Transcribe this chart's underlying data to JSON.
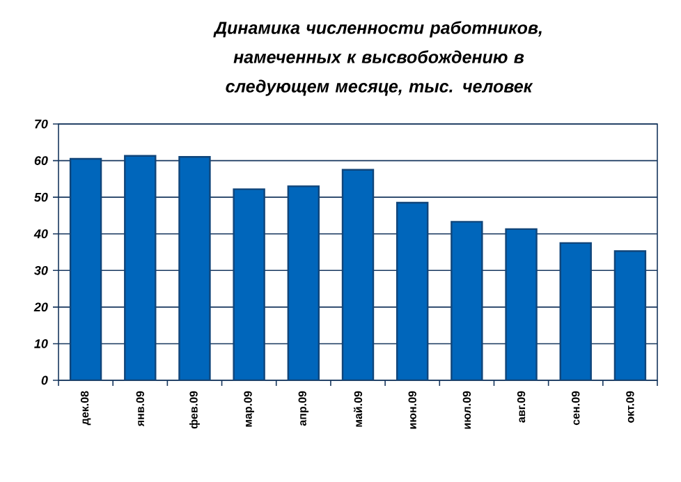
{
  "chart_data": {
    "type": "bar",
    "title": "Динамика численности работников, намеченных к высвобождению в следующем месяце, тыс. человек",
    "categories": [
      "дек.08",
      "янв.09",
      "фев.09",
      "мар.09",
      "апр.09",
      "май.09",
      "июн.09",
      "июл.09",
      "авг.09",
      "сен.09",
      "окт.09"
    ],
    "values": [
      60.5,
      61.3,
      61,
      52.2,
      53,
      57.5,
      48.5,
      43.3,
      41.3,
      37.5,
      35.3
    ],
    "color": "#0066bb",
    "ylim": [
      0,
      70
    ],
    "yticks": [
      0,
      10,
      20,
      30,
      40,
      50,
      60,
      70
    ],
    "grid": "y"
  }
}
